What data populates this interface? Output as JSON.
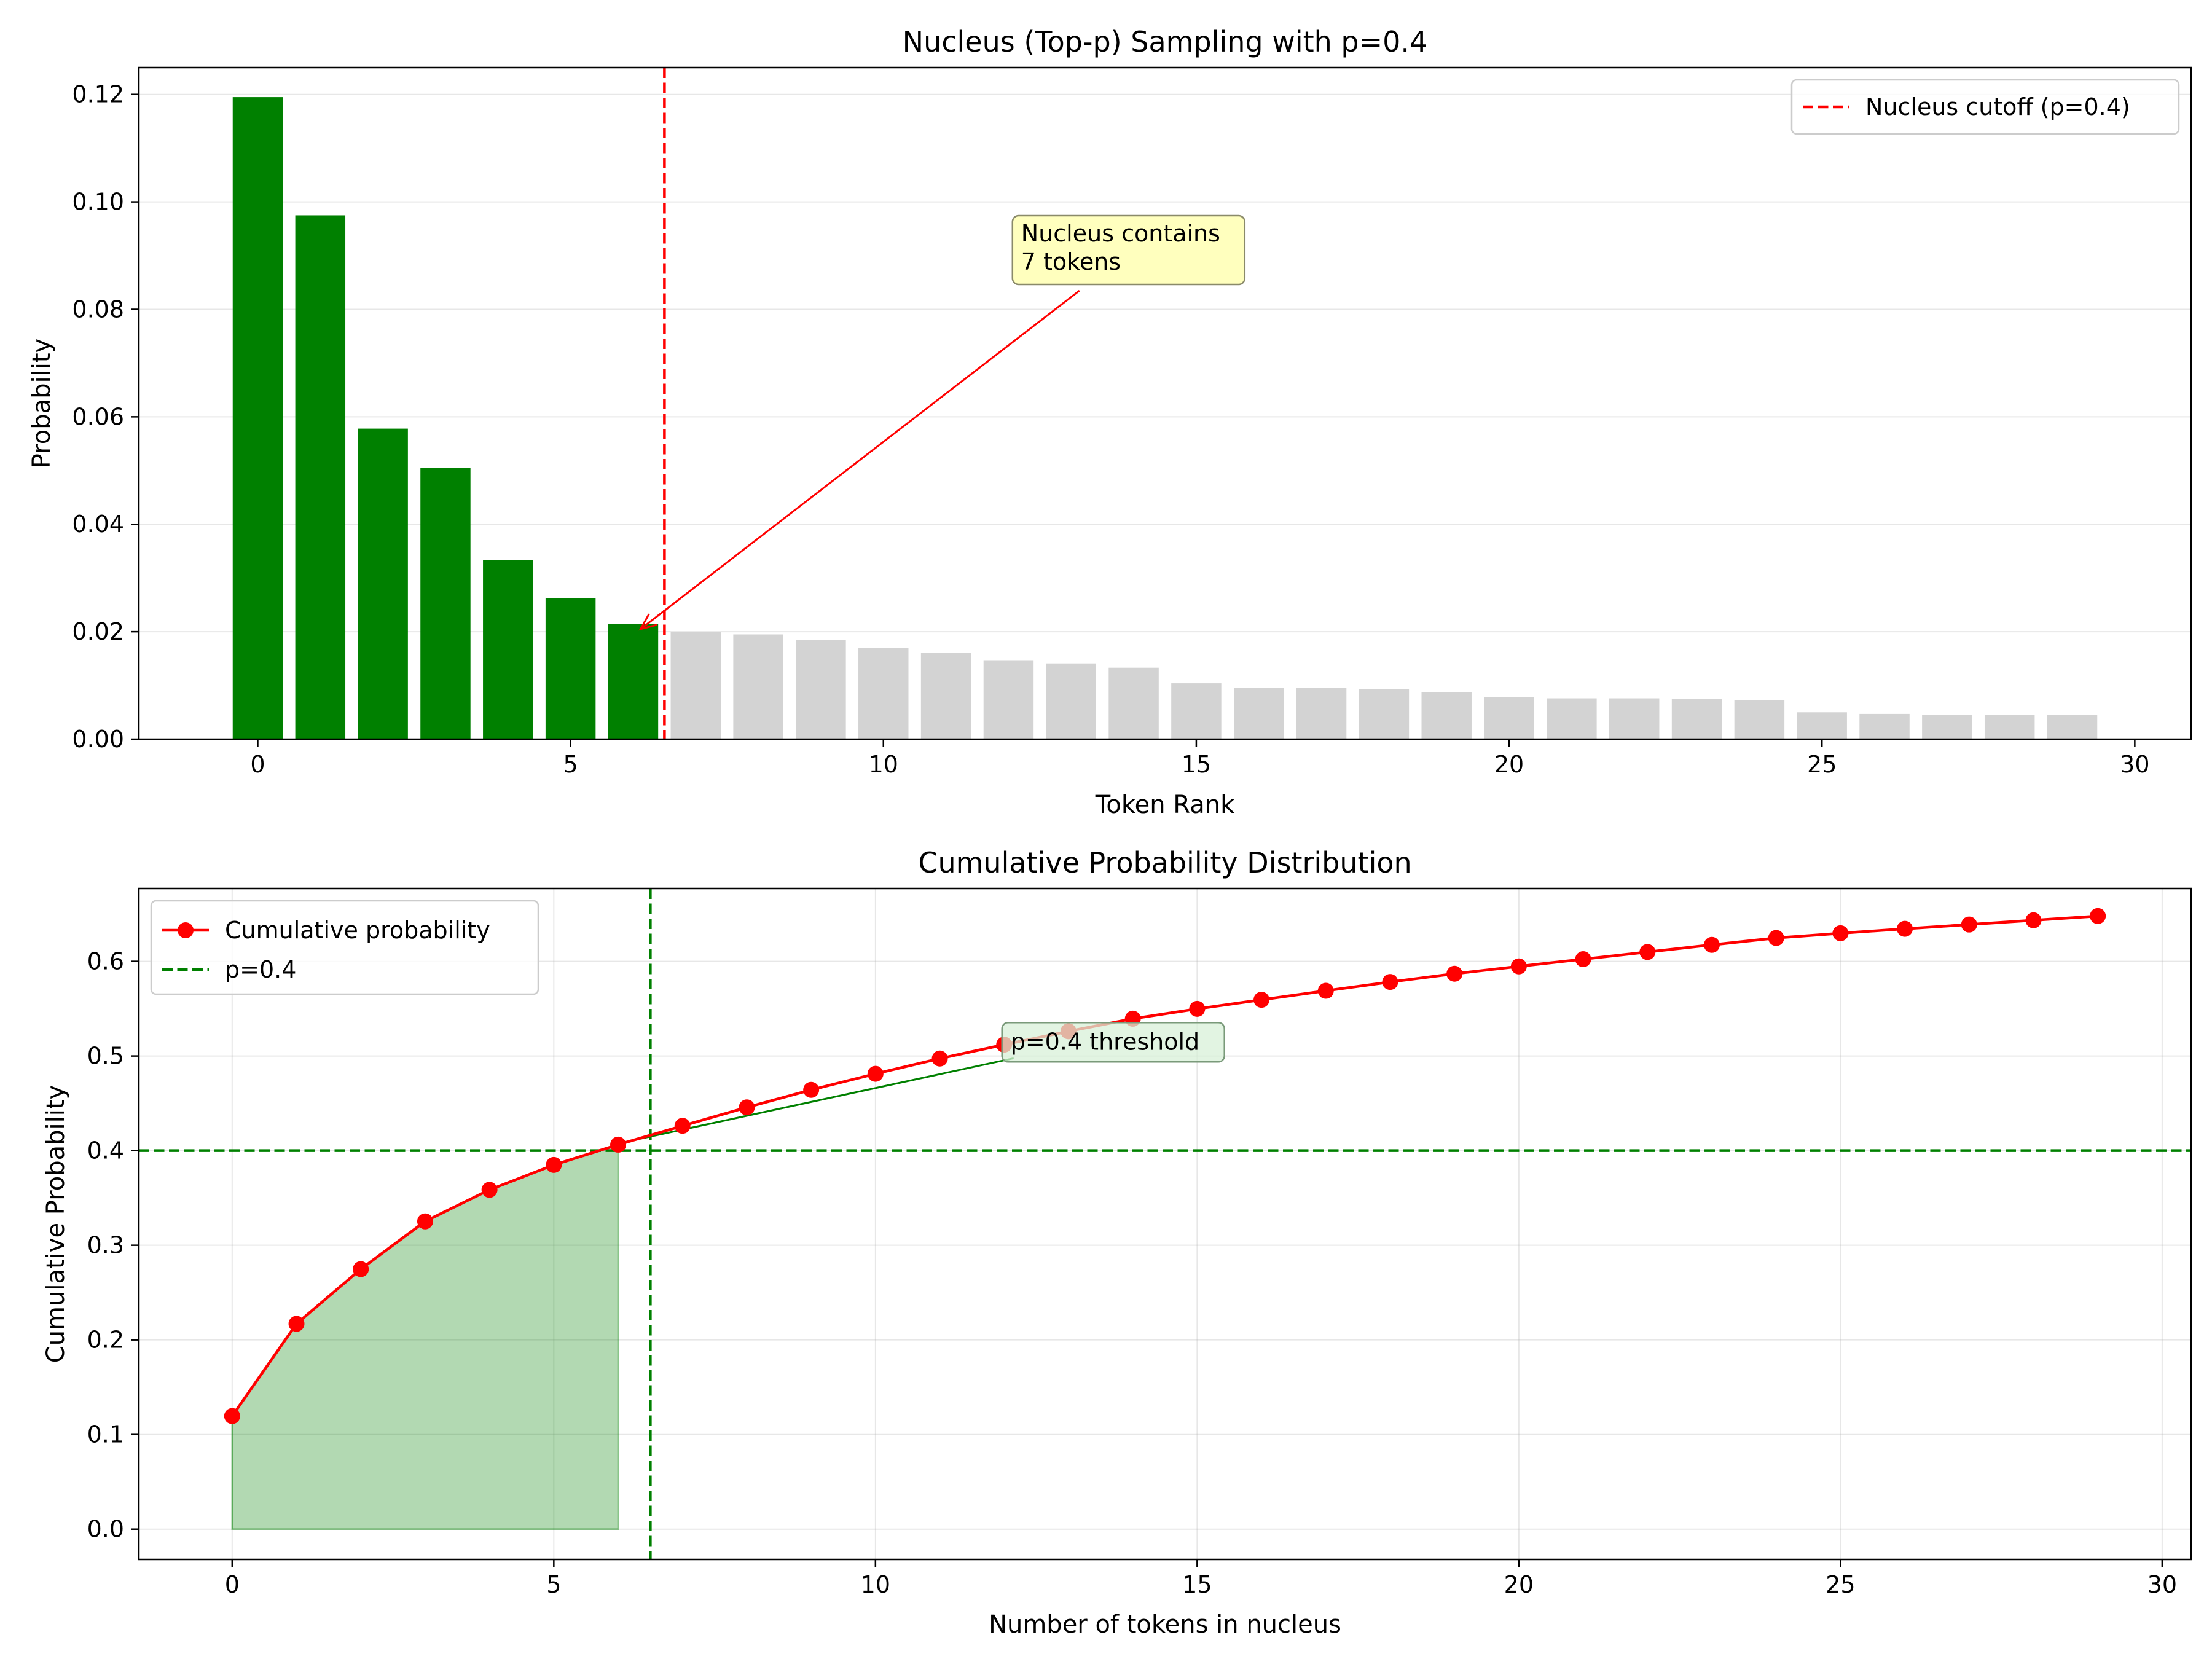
{
  "chart_data": [
    {
      "type": "bar",
      "title": "Nucleus (Top-p) Sampling with p=0.4",
      "xlabel": "Token Rank",
      "ylabel": "Probability",
      "xlim": [
        -1.9,
        30.9
      ],
      "ylim": [
        0,
        0.125
      ],
      "xticks": [
        0,
        5,
        10,
        15,
        20,
        25,
        30
      ],
      "yticks": [
        0.0,
        0.02,
        0.04,
        0.06,
        0.08,
        0.1,
        0.12
      ],
      "ytick_labels": [
        "0.00",
        "0.02",
        "0.04",
        "0.06",
        "0.08",
        "0.10",
        "0.12"
      ],
      "grid": "y",
      "x": [
        0,
        1,
        2,
        3,
        4,
        5,
        6,
        7,
        8,
        9,
        10,
        11,
        12,
        13,
        14,
        15,
        16,
        17,
        18,
        19,
        20,
        21,
        22,
        23,
        24,
        25,
        26,
        27,
        28,
        29
      ],
      "values": [
        0.1195,
        0.0975,
        0.0578,
        0.0505,
        0.0333,
        0.0263,
        0.0214,
        0.0199,
        0.0195,
        0.0185,
        0.017,
        0.0161,
        0.0147,
        0.0141,
        0.0133,
        0.0104,
        0.0096,
        0.0095,
        0.0093,
        0.0087,
        0.0078,
        0.0076,
        0.0076,
        0.0075,
        0.0073,
        0.005,
        0.0047,
        0.0045,
        0.0045,
        0.0045
      ],
      "nucleus_count": 7,
      "colors": {
        "nucleus": "#008000",
        "rest": "#d3d3d3",
        "cutoff": "#ff0000"
      },
      "cutoff_x": 6.5,
      "legend": {
        "placement": "top-right",
        "entries": [
          {
            "label": "Nucleus cutoff (p=0.4)",
            "style": "dashed",
            "color": "#ff0000"
          }
        ]
      },
      "annotation": {
        "lines": [
          "Nucleus contains",
          "7 tokens"
        ],
        "box_x": 12.2,
        "box_y": 0.086,
        "arrow_to": [
          6.0,
          0.0214
        ],
        "box_color": "#ffffb3"
      }
    },
    {
      "type": "line",
      "title": "Cumulative Probability Distribution",
      "xlabel": "Number of tokens in nucleus",
      "ylabel": "Cumulative Probability",
      "xlim": [
        -1.45,
        30.45
      ],
      "ylim": [
        -0.032,
        0.677
      ],
      "xticks": [
        0,
        5,
        10,
        15,
        20,
        25,
        30
      ],
      "yticks": [
        0.0,
        0.1,
        0.2,
        0.3,
        0.4,
        0.5,
        0.6
      ],
      "ytick_labels": [
        "0.0",
        "0.1",
        "0.2",
        "0.3",
        "0.4",
        "0.5",
        "0.6"
      ],
      "grid": "both",
      "series": [
        {
          "name": "Cumulative probability",
          "color": "#ff0000",
          "marker": "circle",
          "x": [
            0,
            1,
            2,
            3,
            4,
            5,
            6,
            7,
            8,
            9,
            10,
            11,
            12,
            13,
            14,
            15,
            16,
            17,
            18,
            19,
            20,
            21,
            22,
            23,
            24,
            25,
            26,
            27,
            28,
            29
          ],
          "values": [
            0.1195,
            0.217,
            0.2748,
            0.3253,
            0.3586,
            0.3849,
            0.4063,
            0.4262,
            0.4457,
            0.4642,
            0.4812,
            0.4973,
            0.512,
            0.5261,
            0.5394,
            0.5498,
            0.5594,
            0.5689,
            0.5782,
            0.5869,
            0.5947,
            0.6023,
            0.6099,
            0.6174,
            0.6247,
            0.6297,
            0.6344,
            0.6389,
            0.6434,
            0.6479
          ]
        }
      ],
      "threshold": {
        "name": "p=0.4",
        "y": 0.4,
        "x": 6.5,
        "color": "#008000",
        "style": "dashed"
      },
      "shaded_region": {
        "x_from": 0,
        "x_to": 6,
        "color": "#008000",
        "alpha": 0.3
      },
      "legend": {
        "placement": "top-left",
        "entries": [
          {
            "label": "Cumulative probability",
            "style": "line-marker",
            "color": "#ff0000"
          },
          {
            "label": "p=0.4",
            "style": "dashed",
            "color": "#008000"
          }
        ]
      },
      "annotation": {
        "lines": [
          "p=0.4 threshold"
        ],
        "box_x": 12.1,
        "box_y": 0.508,
        "arrow_to": [
          6.0,
          0.4063
        ],
        "box_color": "#d8f0d8"
      }
    }
  ]
}
